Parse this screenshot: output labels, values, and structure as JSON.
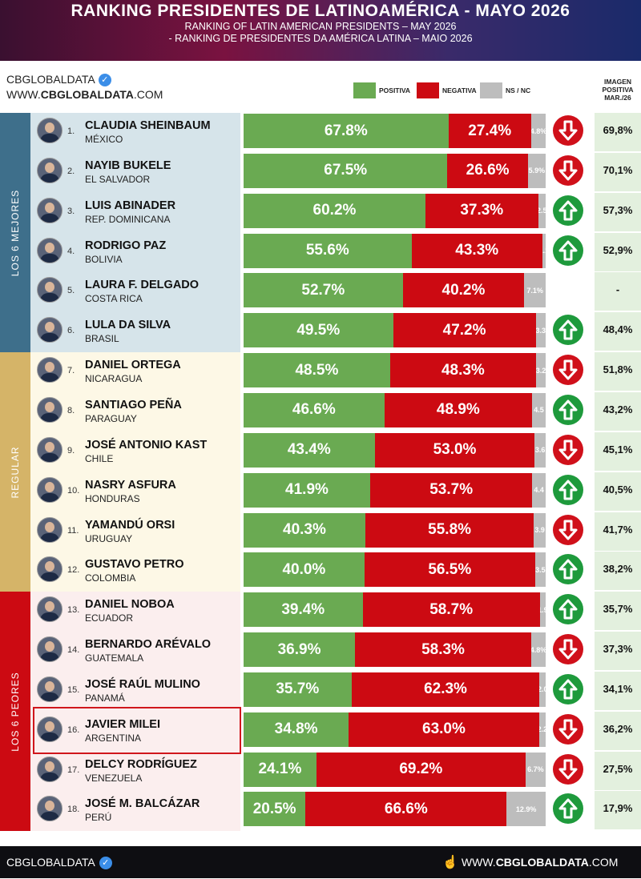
{
  "header": {
    "title": "RANKING PRESIDENTES DE LATINOAMÉRICA - MAYO 2026",
    "subtitle_en": "RANKING OF LATIN AMERICAN PRESIDENTS – MAY 2026",
    "subtitle_pt": "- RANKING DE PRESIDENTES DA AMÉRICA LATINA – MAIO 2026"
  },
  "brand": {
    "name": "CBGLOBALDATA",
    "url_prefix": "WWW.",
    "url_bold": "CBGLOBALDATA",
    "url_suffix": ".COM"
  },
  "legend": {
    "positive": "POSITIVA",
    "negative": "NEGATIVA",
    "ns": "NS / NC"
  },
  "prev_header": "IMAGEN POSITIVA MAR./26",
  "groups": [
    {
      "label": "LOS 6 MEJORES",
      "color": "#3e6f8b",
      "bg": "#d6e4ea"
    },
    {
      "label": "REGULAR",
      "color": "#d5b468",
      "bg": "#fdf8e6"
    },
    {
      "label": "LOS 6 PEORES",
      "color": "#cc0a12",
      "bg": "#fbeeee"
    }
  ],
  "colors": {
    "positive": "#6aaa52",
    "negative": "#cc0a12",
    "ns": "#bdbdbd",
    "up": "#1e9a3c",
    "down": "#d0101a"
  },
  "chart_data": {
    "type": "bar",
    "stacked": true,
    "orientation": "horizontal",
    "title": "RANKING PRESIDENTES DE LATINOAMÉRICA - MAYO 2026",
    "categories": [
      "CLAUDIA SHEINBAUM",
      "NAYIB BUKELE",
      "LUIS ABINADER",
      "RODRIGO PAZ",
      "LAURA F. DELGADO",
      "LULA DA SILVA",
      "DANIEL ORTEGA",
      "SANTIAGO PEÑA",
      "JOSÉ ANTONIO KAST",
      "NASRY ASFURA",
      "YAMANDÚ ORSI",
      "GUSTAVO PETRO",
      "DANIEL NOBOA",
      "BERNARDO ARÉVALO",
      "JOSÉ RAÚL MULINO",
      "JAVIER MILEI",
      "DELCY RODRÍGUEZ",
      "JOSÉ M. BALCÁZAR"
    ],
    "series": [
      {
        "name": "POSITIVA",
        "values": [
          67.8,
          67.5,
          60.2,
          55.6,
          52.7,
          49.5,
          48.5,
          46.6,
          43.4,
          41.9,
          40.3,
          40.0,
          39.4,
          36.9,
          35.7,
          34.8,
          24.1,
          20.5
        ]
      },
      {
        "name": "NEGATIVA",
        "values": [
          27.4,
          26.6,
          37.3,
          43.3,
          40.2,
          47.2,
          48.3,
          48.9,
          53.0,
          53.7,
          55.8,
          56.5,
          58.7,
          58.3,
          62.3,
          63.0,
          69.2,
          66.6
        ]
      },
      {
        "name": "NS / NC",
        "values": [
          4.8,
          5.9,
          2.5,
          1.1,
          7.1,
          3.3,
          3.2,
          4.5,
          3.6,
          4.4,
          3.9,
          3.5,
          1.9,
          4.8,
          2.0,
          2.2,
          6.7,
          12.9
        ]
      }
    ],
    "rows": [
      {
        "rank": "1.",
        "name": "CLAUDIA SHEINBAUM",
        "country": "MÉXICO",
        "pos": 67.8,
        "pos_label": "67.8%",
        "neg": 27.4,
        "neg_label": "27.4%",
        "ns": 4.8,
        "ns_label": "4.8%",
        "trend": "down",
        "prev": "69,8%",
        "group": 0
      },
      {
        "rank": "2.",
        "name": "NAYIB BUKELE",
        "country": "EL SALVADOR",
        "pos": 67.5,
        "pos_label": "67.5%",
        "neg": 26.6,
        "neg_label": "26.6%",
        "ns": 5.9,
        "ns_label": "5.9%",
        "trend": "down",
        "prev": "70,1%",
        "group": 0
      },
      {
        "rank": "3.",
        "name": "LUIS ABINADER",
        "country": "REP. DOMINICANA",
        "pos": 60.2,
        "pos_label": "60.2%",
        "neg": 37.3,
        "neg_label": "37.3%",
        "ns": 2.5,
        "ns_label": "2.5",
        "trend": "up",
        "prev": "57,3%",
        "group": 0
      },
      {
        "rank": "4.",
        "name": "RODRIGO PAZ",
        "country": "BOLIVIA",
        "pos": 55.6,
        "pos_label": "55.6%",
        "neg": 43.3,
        "neg_label": "43.3%",
        "ns": 1.1,
        "ns_label": "1.1",
        "trend": "up",
        "prev": "52,9%",
        "group": 0
      },
      {
        "rank": "5.",
        "name": "LAURA F. DELGADO",
        "country": "COSTA RICA",
        "pos": 52.7,
        "pos_label": "52.7%",
        "neg": 40.2,
        "neg_label": "40.2%",
        "ns": 7.1,
        "ns_label": "7.1%",
        "trend": "",
        "prev": "-",
        "group": 0
      },
      {
        "rank": "6.",
        "name": "LULA DA SILVA",
        "country": "BRASIL",
        "pos": 49.5,
        "pos_label": "49.5%",
        "neg": 47.2,
        "neg_label": "47.2%",
        "ns": 3.3,
        "ns_label": "3.3",
        "trend": "up",
        "prev": "48,4%",
        "group": 0
      },
      {
        "rank": "7.",
        "name": "DANIEL ORTEGA",
        "country": "NICARAGUA",
        "pos": 48.5,
        "pos_label": "48.5%",
        "neg": 48.3,
        "neg_label": "48.3%",
        "ns": 3.2,
        "ns_label": "3.2",
        "trend": "down",
        "prev": "51,8%",
        "group": 1
      },
      {
        "rank": "8.",
        "name": "SANTIAGO PEÑA",
        "country": "PARAGUAY",
        "pos": 46.6,
        "pos_label": "46.6%",
        "neg": 48.9,
        "neg_label": "48.9%",
        "ns": 4.5,
        "ns_label": "4.5",
        "trend": "up",
        "prev": "43,2%",
        "group": 1
      },
      {
        "rank": "9.",
        "name": "JOSÉ ANTONIO KAST",
        "country": "CHILE",
        "pos": 43.4,
        "pos_label": "43.4%",
        "neg": 53.0,
        "neg_label": "53.0%",
        "ns": 3.6,
        "ns_label": "3.6",
        "trend": "down",
        "prev": "45,1%",
        "group": 1
      },
      {
        "rank": "10.",
        "name": "NASRY ASFURA",
        "country": "HONDURAS",
        "pos": 41.9,
        "pos_label": "41.9%",
        "neg": 53.7,
        "neg_label": "53.7%",
        "ns": 4.4,
        "ns_label": "4.4",
        "trend": "up",
        "prev": "40,5%",
        "group": 1
      },
      {
        "rank": "11.",
        "name": "YAMANDÚ ORSI",
        "country": "URUGUAY",
        "pos": 40.3,
        "pos_label": "40.3%",
        "neg": 55.8,
        "neg_label": "55.8%",
        "ns": 3.9,
        "ns_label": "3.9",
        "trend": "down",
        "prev": "41,7%",
        "group": 1
      },
      {
        "rank": "12.",
        "name": "GUSTAVO PETRO",
        "country": "COLOMBIA",
        "pos": 40.0,
        "pos_label": "40.0%",
        "neg": 56.5,
        "neg_label": "56.5%",
        "ns": 3.5,
        "ns_label": "3.5",
        "trend": "up",
        "prev": "38,2%",
        "group": 1
      },
      {
        "rank": "13.",
        "name": "DANIEL NOBOA",
        "country": "ECUADOR",
        "pos": 39.4,
        "pos_label": "39.4%",
        "neg": 58.7,
        "neg_label": "58.7%",
        "ns": 1.9,
        "ns_label": "1.9",
        "trend": "up",
        "prev": "35,7%",
        "group": 2
      },
      {
        "rank": "14.",
        "name": "BERNARDO ARÉVALO",
        "country": "GUATEMALA",
        "pos": 36.9,
        "pos_label": "36.9%",
        "neg": 58.3,
        "neg_label": "58.3%",
        "ns": 4.8,
        "ns_label": "4.8%",
        "trend": "down",
        "prev": "37,3%",
        "group": 2
      },
      {
        "rank": "15.",
        "name": "JOSÉ RAÚL MULINO",
        "country": "PANAMÁ",
        "pos": 35.7,
        "pos_label": "35.7%",
        "neg": 62.3,
        "neg_label": "62.3%",
        "ns": 2.0,
        "ns_label": "2.0",
        "trend": "up",
        "prev": "34,1%",
        "group": 2
      },
      {
        "rank": "16.",
        "name": "JAVIER MILEI",
        "country": "ARGENTINA",
        "pos": 34.8,
        "pos_label": "34.8%",
        "neg": 63.0,
        "neg_label": "63.0%",
        "ns": 2.2,
        "ns_label": "2.2",
        "trend": "down",
        "prev": "36,2%",
        "group": 2
      },
      {
        "rank": "17.",
        "name": "DELCY RODRÍGUEZ",
        "country": "VENEZUELA",
        "pos": 24.1,
        "pos_label": "24.1%",
        "neg": 69.2,
        "neg_label": "69.2%",
        "ns": 6.7,
        "ns_label": "6.7%",
        "trend": "down",
        "prev": "27,5%",
        "group": 2
      },
      {
        "rank": "18.",
        "name": "JOSÉ M. BALCÁZAR",
        "country": "PERÚ",
        "pos": 20.5,
        "pos_label": "20.5%",
        "neg": 66.6,
        "neg_label": "66.6%",
        "ns": 12.9,
        "ns_label": "12.9%",
        "trend": "up",
        "prev": "17,9%",
        "group": 2
      }
    ],
    "highlighted": "JAVIER MILEI"
  },
  "footer": {
    "brand": "CBGLOBALDATA",
    "url_prefix": "WWW.",
    "url_bold": "CBGLOBALDATA",
    "url_suffix": ".COM"
  }
}
